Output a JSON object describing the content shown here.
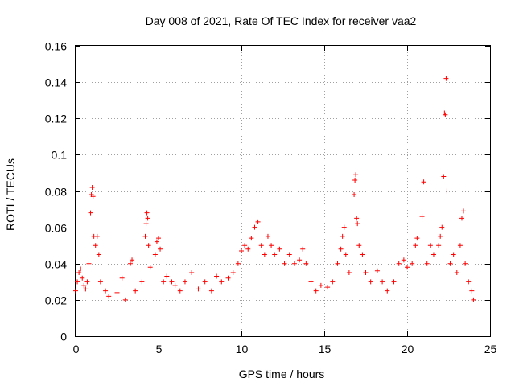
{
  "chart_data": {
    "type": "scatter",
    "title": "Day 008 of 2021, Rate Of TEC Index for receiver vaa2",
    "xlabel": "GPS time / hours",
    "ylabel": "ROTI / TECUs",
    "xlim": [
      0,
      25
    ],
    "ylim": [
      0,
      0.16
    ],
    "x_ticks": [
      0,
      5,
      10,
      15,
      20,
      25
    ],
    "y_ticks": [
      0,
      0.02,
      0.04,
      0.06,
      0.08,
      0.1,
      0.12,
      0.14,
      0.16
    ],
    "x_tick_labels": [
      "0",
      "5",
      "10",
      "15",
      "20",
      "25"
    ],
    "y_tick_labels": [
      "0",
      "0.02",
      "0.04",
      "0.06",
      "0.08",
      "0.1",
      "0.12",
      "0.14",
      "0.16"
    ],
    "grid": true,
    "marker": "+",
    "color": "#ff0000",
    "series": [
      {
        "name": "ROTI",
        "points": [
          [
            0.0,
            0.025
          ],
          [
            0.1,
            0.03
          ],
          [
            0.2,
            0.035
          ],
          [
            0.3,
            0.037
          ],
          [
            0.4,
            0.032
          ],
          [
            0.5,
            0.028
          ],
          [
            0.6,
            0.026
          ],
          [
            0.7,
            0.03
          ],
          [
            0.8,
            0.04
          ],
          [
            0.9,
            0.068
          ],
          [
            0.95,
            0.078
          ],
          [
            1.0,
            0.082
          ],
          [
            1.05,
            0.077
          ],
          [
            1.1,
            0.055
          ],
          [
            1.2,
            0.05
          ],
          [
            1.3,
            0.055
          ],
          [
            1.4,
            0.045
          ],
          [
            1.5,
            0.03
          ],
          [
            1.8,
            0.025
          ],
          [
            2.0,
            0.022
          ],
          [
            2.5,
            0.024
          ],
          [
            2.8,
            0.032
          ],
          [
            3.0,
            0.02
          ],
          [
            3.3,
            0.04
          ],
          [
            3.4,
            0.042
          ],
          [
            3.6,
            0.025
          ],
          [
            4.0,
            0.03
          ],
          [
            4.2,
            0.055
          ],
          [
            4.25,
            0.062
          ],
          [
            4.3,
            0.068
          ],
          [
            4.35,
            0.065
          ],
          [
            4.4,
            0.05
          ],
          [
            4.5,
            0.038
          ],
          [
            4.8,
            0.045
          ],
          [
            4.9,
            0.052
          ],
          [
            5.0,
            0.054
          ],
          [
            5.1,
            0.048
          ],
          [
            5.3,
            0.03
          ],
          [
            5.5,
            0.033
          ],
          [
            5.8,
            0.03
          ],
          [
            6.0,
            0.028
          ],
          [
            6.3,
            0.025
          ],
          [
            6.6,
            0.03
          ],
          [
            7.0,
            0.035
          ],
          [
            7.4,
            0.026
          ],
          [
            7.8,
            0.03
          ],
          [
            8.2,
            0.025
          ],
          [
            8.5,
            0.033
          ],
          [
            8.8,
            0.03
          ],
          [
            9.2,
            0.032
          ],
          [
            9.5,
            0.035
          ],
          [
            9.8,
            0.04
          ],
          [
            10.0,
            0.047
          ],
          [
            10.2,
            0.05
          ],
          [
            10.4,
            0.048
          ],
          [
            10.6,
            0.054
          ],
          [
            10.8,
            0.06
          ],
          [
            11.0,
            0.063
          ],
          [
            11.2,
            0.05
          ],
          [
            11.4,
            0.045
          ],
          [
            11.6,
            0.055
          ],
          [
            11.8,
            0.05
          ],
          [
            12.0,
            0.045
          ],
          [
            12.3,
            0.048
          ],
          [
            12.6,
            0.04
          ],
          [
            12.9,
            0.045
          ],
          [
            13.2,
            0.04
          ],
          [
            13.5,
            0.042
          ],
          [
            13.7,
            0.048
          ],
          [
            13.9,
            0.04
          ],
          [
            14.2,
            0.03
          ],
          [
            14.5,
            0.025
          ],
          [
            14.8,
            0.028
          ],
          [
            15.2,
            0.027
          ],
          [
            15.5,
            0.03
          ],
          [
            15.8,
            0.04
          ],
          [
            16.0,
            0.048
          ],
          [
            16.1,
            0.055
          ],
          [
            16.2,
            0.06
          ],
          [
            16.3,
            0.045
          ],
          [
            16.5,
            0.035
          ],
          [
            16.8,
            0.078
          ],
          [
            16.85,
            0.086
          ],
          [
            16.9,
            0.089
          ],
          [
            16.95,
            0.065
          ],
          [
            17.0,
            0.062
          ],
          [
            17.1,
            0.05
          ],
          [
            17.3,
            0.045
          ],
          [
            17.5,
            0.035
          ],
          [
            17.8,
            0.03
          ],
          [
            18.2,
            0.036
          ],
          [
            18.5,
            0.03
          ],
          [
            18.8,
            0.025
          ],
          [
            19.2,
            0.03
          ],
          [
            19.5,
            0.04
          ],
          [
            19.8,
            0.042
          ],
          [
            20.0,
            0.038
          ],
          [
            20.3,
            0.04
          ],
          [
            20.5,
            0.05
          ],
          [
            20.6,
            0.054
          ],
          [
            20.9,
            0.066
          ],
          [
            21.0,
            0.085
          ],
          [
            21.2,
            0.04
          ],
          [
            21.4,
            0.05
          ],
          [
            21.6,
            0.045
          ],
          [
            21.9,
            0.05
          ],
          [
            22.0,
            0.055
          ],
          [
            22.1,
            0.06
          ],
          [
            22.2,
            0.088
          ],
          [
            22.25,
            0.123
          ],
          [
            22.3,
            0.122
          ],
          [
            22.35,
            0.142
          ],
          [
            22.4,
            0.08
          ],
          [
            22.6,
            0.04
          ],
          [
            22.8,
            0.045
          ],
          [
            23.0,
            0.035
          ],
          [
            23.2,
            0.05
          ],
          [
            23.3,
            0.065
          ],
          [
            23.4,
            0.069
          ],
          [
            23.5,
            0.04
          ],
          [
            23.7,
            0.03
          ],
          [
            23.9,
            0.025
          ],
          [
            24.0,
            0.02
          ]
        ]
      }
    ]
  }
}
